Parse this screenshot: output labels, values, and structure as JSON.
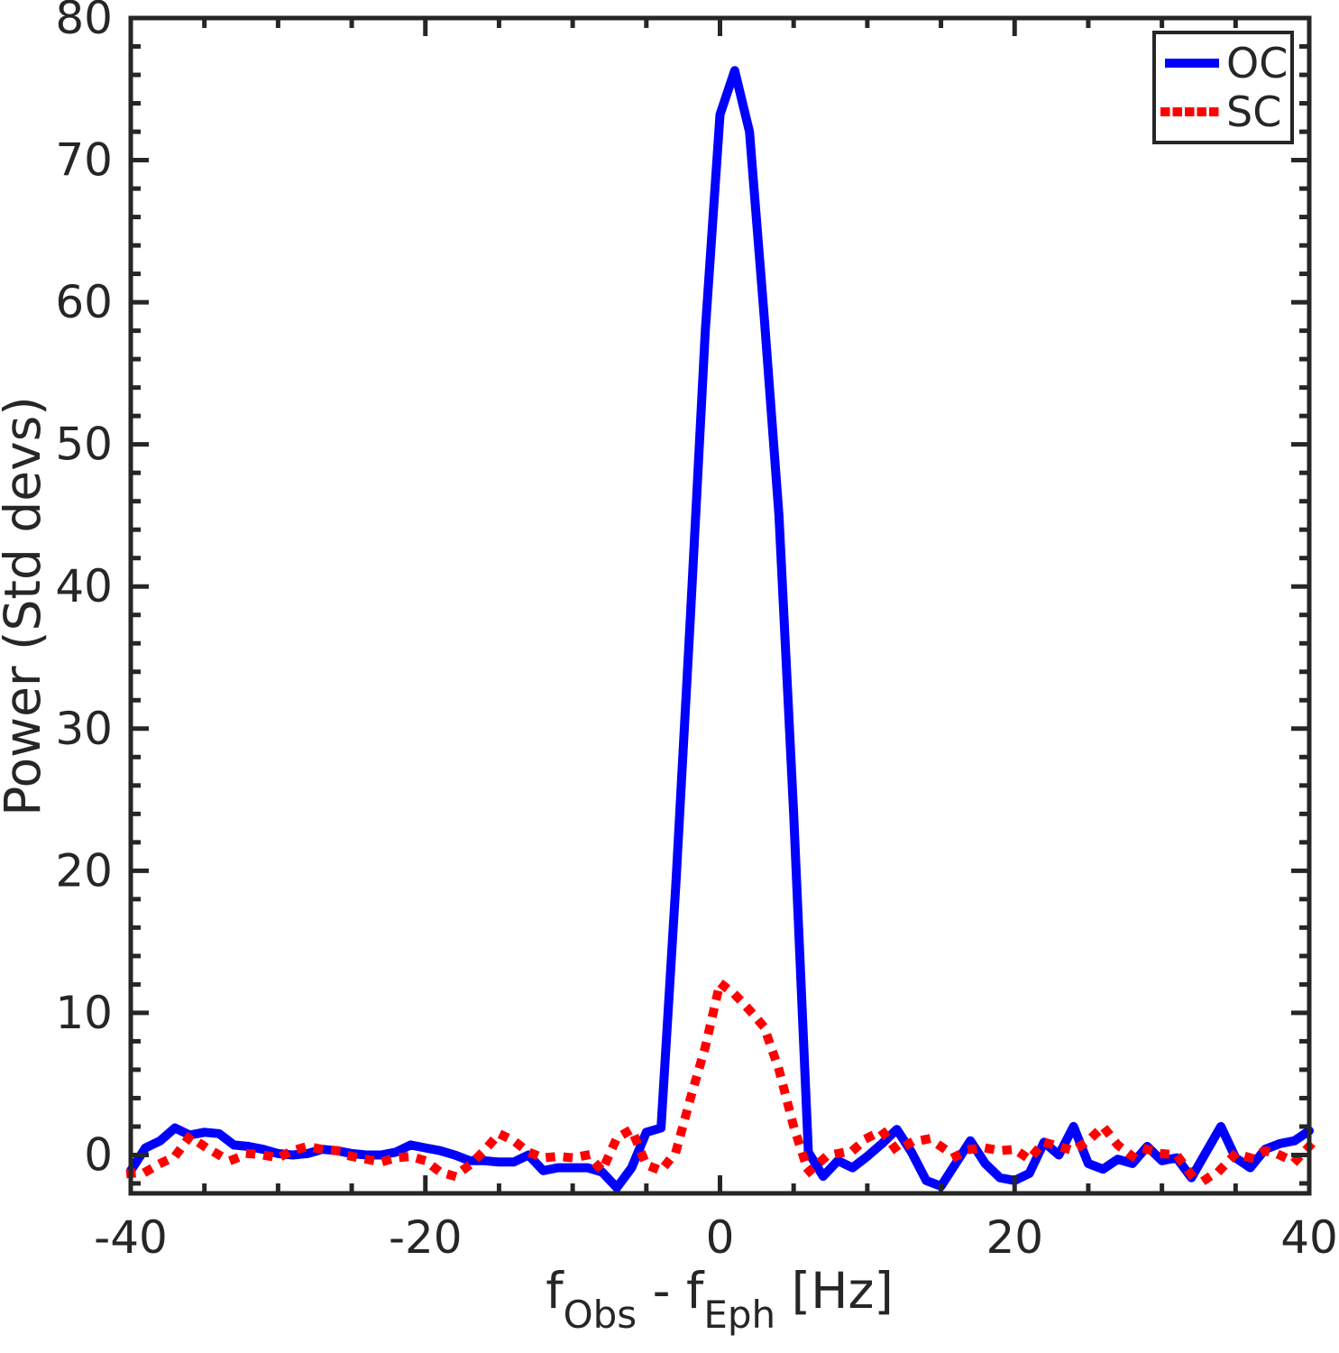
{
  "figure": {
    "background": "#ffffff",
    "axis_color": "#262626"
  },
  "chart_data": {
    "type": "line",
    "title": "",
    "xlabel": "f_Obs - f_Eph [Hz]",
    "xlabel_parts": [
      {
        "text": "f",
        "sub": false
      },
      {
        "text": "Obs",
        "sub": true
      },
      {
        "text": " - f",
        "sub": false
      },
      {
        "text": "Eph",
        "sub": true
      },
      {
        "text": " [Hz]",
        "sub": false
      }
    ],
    "ylabel": "Power (Std devs)",
    "xlim": [
      -40,
      40
    ],
    "ylim": [
      -2.7,
      80
    ],
    "x_major_ticks": [
      -40,
      -20,
      0,
      20,
      40
    ],
    "x_major_tick_labels": [
      "-40",
      "-20",
      "0",
      "20",
      "40"
    ],
    "x_minor_step": 5,
    "y_major_ticks": [
      0,
      10,
      20,
      30,
      40,
      50,
      60,
      70,
      80
    ],
    "y_major_tick_labels": [
      "0",
      "10",
      "20",
      "30",
      "40",
      "50",
      "60",
      "70",
      "80"
    ],
    "y_minor_step": 2,
    "grid": false,
    "legend": {
      "position": "top-right",
      "entries": [
        {
          "label": "OC",
          "color": "#0000FF",
          "style": "solid"
        },
        {
          "label": "SC",
          "color": "#FF0000",
          "style": "dotted"
        }
      ]
    },
    "x": [
      -40,
      -39,
      -38,
      -37,
      -36,
      -35,
      -34,
      -33,
      -32,
      -31,
      -30,
      -29,
      -28,
      -27,
      -26,
      -25,
      -24,
      -23,
      -22,
      -21,
      -20,
      -19,
      -18,
      -17,
      -16,
      -15,
      -14,
      -13,
      -12,
      -11,
      -10,
      -9,
      -8,
      -7,
      -6,
      -5,
      -4,
      -3,
      -2,
      -1,
      0,
      1,
      2,
      3,
      4,
      5,
      6,
      7,
      8,
      9,
      10,
      11,
      12,
      13,
      14,
      15,
      16,
      17,
      18,
      19,
      20,
      21,
      22,
      23,
      24,
      25,
      26,
      27,
      28,
      29,
      30,
      31,
      32,
      33,
      34,
      35,
      36,
      37,
      38,
      39,
      40
    ],
    "series": [
      {
        "name": "OC",
        "color": "#0000FF",
        "style": "solid",
        "linewidth": 10,
        "values": [
          -1.1,
          0.5,
          1.0,
          1.9,
          1.4,
          1.6,
          1.5,
          0.7,
          0.6,
          0.4,
          0.1,
          0.0,
          0.1,
          0.4,
          0.3,
          0.1,
          0.0,
          0.0,
          0.2,
          0.7,
          0.5,
          0.3,
          0.0,
          -0.4,
          -0.4,
          -0.5,
          -0.5,
          0.0,
          -1.1,
          -0.9,
          -0.9,
          -0.9,
          -1.2,
          -2.3,
          -0.9,
          1.6,
          1.9,
          19.0,
          38.0,
          58.0,
          73.2,
          76.3,
          72.0,
          59.0,
          45.0,
          24.0,
          0.2,
          -1.5,
          -0.4,
          -0.9,
          -0.1,
          0.8,
          1.8,
          0.2,
          -1.8,
          -2.2,
          -0.6,
          1.0,
          -0.6,
          -1.6,
          -1.8,
          -1.3,
          0.9,
          0.0,
          2.0,
          -0.6,
          -1.0,
          -0.3,
          -0.6,
          0.6,
          -0.4,
          -0.2,
          -1.6,
          0.2,
          2.0,
          -0.2,
          -0.9,
          0.4,
          0.8,
          1.0,
          1.7
        ]
      },
      {
        "name": "SC",
        "color": "#FF0000",
        "style": "dotted",
        "linewidth": 10,
        "values": [
          -1.3,
          -1.2,
          -0.6,
          -0.1,
          1.3,
          0.6,
          0.0,
          -0.3,
          0.1,
          0.0,
          -0.2,
          0.3,
          0.6,
          0.4,
          0.3,
          -0.1,
          -0.3,
          -0.5,
          -0.2,
          -0.1,
          -0.4,
          -1.2,
          -1.5,
          -0.7,
          0.3,
          1.5,
          1.0,
          0.2,
          -0.2,
          -0.1,
          -0.2,
          0.0,
          -1.1,
          1.2,
          1.8,
          -0.7,
          -1.1,
          0.2,
          4.0,
          7.6,
          12.1,
          11.3,
          10.2,
          9.0,
          6.0,
          2.0,
          -1.2,
          -0.3,
          0.1,
          0.3,
          1.2,
          1.7,
          0.3,
          0.9,
          1.1,
          0.6,
          -0.1,
          0.4,
          0.5,
          0.3,
          0.4,
          -0.3,
          0.9,
          0.6,
          0.3,
          1.0,
          2.0,
          0.7,
          -0.1,
          0.4,
          0.1,
          0.0,
          -1.4,
          -1.7,
          -1.0,
          0.1,
          -0.2,
          0.3,
          0.0,
          -0.5,
          0.6
        ]
      }
    ]
  }
}
